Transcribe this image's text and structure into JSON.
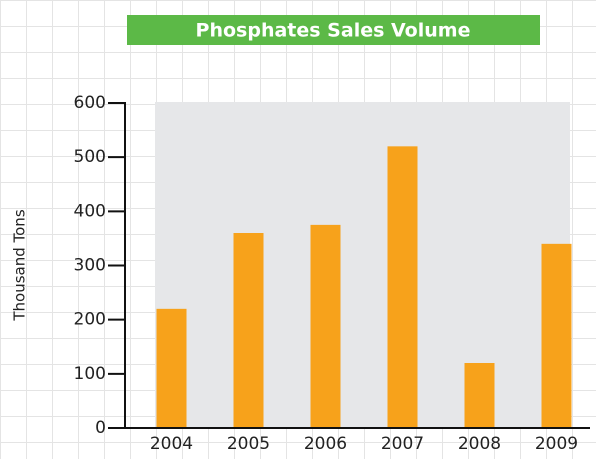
{
  "chart_data": {
    "type": "bar",
    "title": "Phosphates Sales Volume",
    "y_label": "Thousand Tons",
    "categories": [
      "2004",
      "2005",
      "2006",
      "2007",
      "2008",
      "2009"
    ],
    "values": [
      220,
      360,
      375,
      520,
      120,
      340
    ],
    "color": "#f7a21b",
    "ylim": [
      0,
      600
    ],
    "yticks": [
      0,
      100,
      200,
      300,
      400,
      500,
      600
    ]
  }
}
